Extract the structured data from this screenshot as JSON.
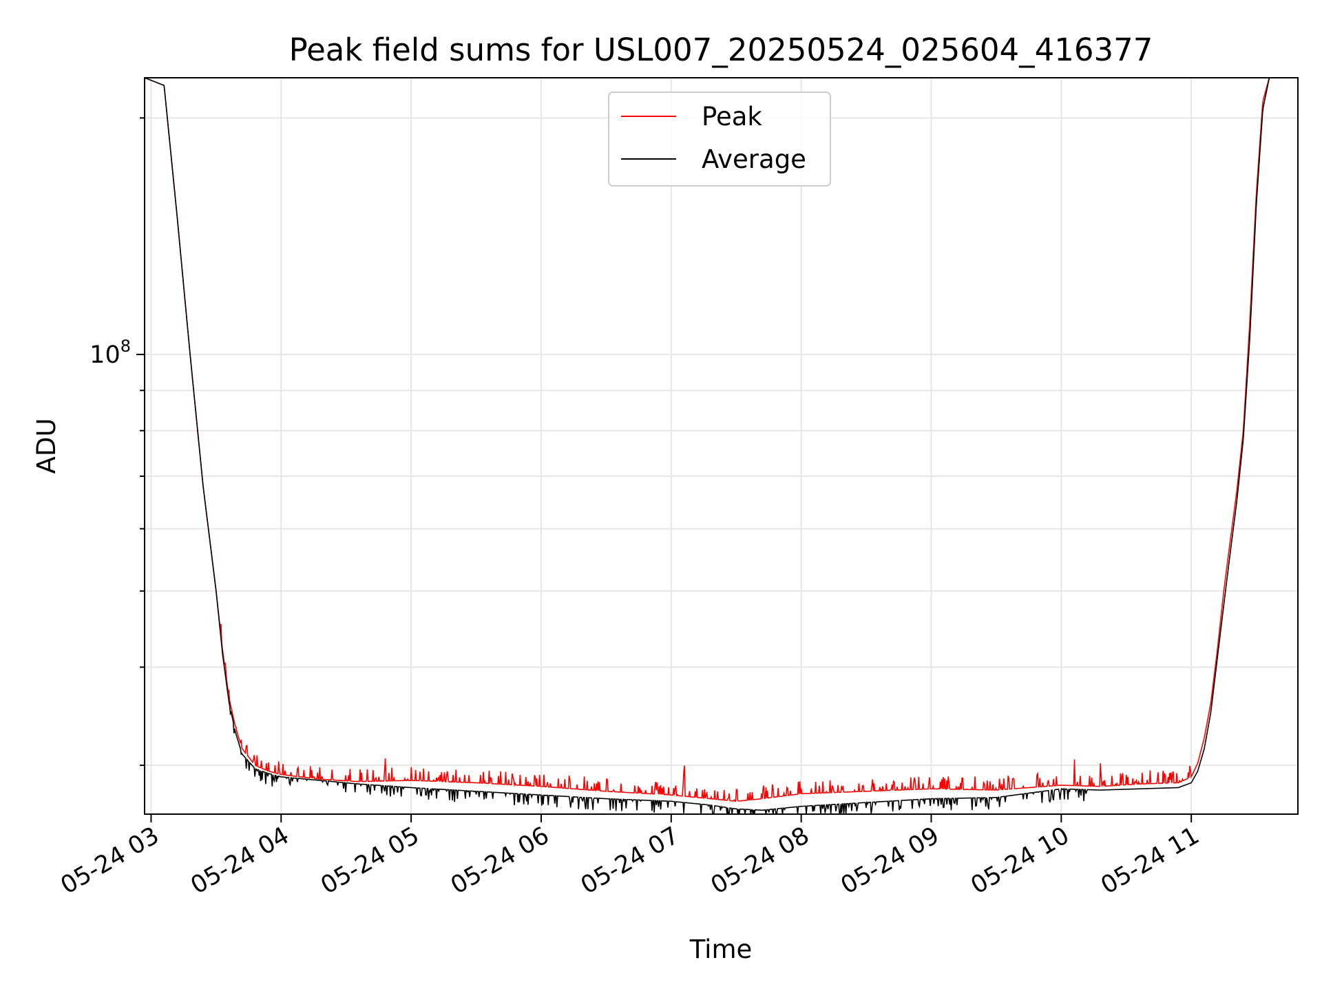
{
  "chart_data": {
    "type": "line",
    "title": "Peak field sums for USL007_20250524_025604_416377",
    "xlabel": "Time",
    "ylabel": "ADU",
    "yscale": "log",
    "grid": true,
    "legend_position": "upper center",
    "xlim_hours": [
      2.95,
      11.82
    ],
    "ylim": [
      26000000,
      225000000
    ],
    "x_ticks": [
      {
        "value": 3,
        "label": "05-24 03"
      },
      {
        "value": 4,
        "label": "05-24 04"
      },
      {
        "value": 5,
        "label": "05-24 05"
      },
      {
        "value": 6,
        "label": "05-24 06"
      },
      {
        "value": 7,
        "label": "05-24 07"
      },
      {
        "value": 8,
        "label": "05-24 08"
      },
      {
        "value": 9,
        "label": "05-24 09"
      },
      {
        "value": 10,
        "label": "05-24 10"
      },
      {
        "value": 11,
        "label": "05-24 11"
      }
    ],
    "y_major_ticks": [
      {
        "value": 100000000,
        "base": "10",
        "exponent": "8"
      }
    ],
    "y_minor_ticks": [
      30000000,
      40000000,
      50000000,
      60000000,
      70000000,
      80000000,
      90000000,
      200000000
    ],
    "series": [
      {
        "name": "Peak",
        "color": "#ff0000",
        "x": [
          2.95,
          3.1,
          3.2,
          3.3,
          3.4,
          3.5,
          3.55,
          3.6,
          3.65,
          3.7,
          3.8,
          3.9,
          4.0,
          4.3,
          4.6,
          5.0,
          5.5,
          6.0,
          6.5,
          7.0,
          7.3,
          7.5,
          7.7,
          8.0,
          8.5,
          9.0,
          9.5,
          10.0,
          10.3,
          10.6,
          10.9,
          11.0,
          11.05,
          11.1,
          11.15,
          11.2,
          11.25,
          11.3,
          11.35,
          11.4,
          11.45,
          11.5,
          11.55,
          11.6,
          11.65,
          11.82
        ],
        "y": [
          225000000,
          220000000,
          150000000,
          100000000,
          68000000,
          50000000,
          42000000,
          36500000,
          33500000,
          31500000,
          30000000,
          29500000,
          29200000,
          28800000,
          28600000,
          28700000,
          28500000,
          28200000,
          27800000,
          27500000,
          27200000,
          27000000,
          27200000,
          27600000,
          27800000,
          28000000,
          27900000,
          28300000,
          28200000,
          28400000,
          28500000,
          29000000,
          30200000,
          32500000,
          36000000,
          42000000,
          50000000,
          58000000,
          67000000,
          80000000,
          110000000,
          160000000,
          210000000,
          225000000,
          225000000,
          225000000
        ],
        "spikes": {
          "count": 380,
          "x_range": [
            3.5,
            11.0
          ],
          "upper_factor": 1.04,
          "notable": [
            {
              "x": 4.8,
              "factor": 1.035
            },
            {
              "x": 5.0,
              "factor": 1.04
            },
            {
              "x": 7.1,
              "factor": 1.06
            },
            {
              "x": 10.1,
              "factor": 1.08
            },
            {
              "x": 10.3,
              "factor": 1.07
            }
          ]
        }
      },
      {
        "name": "Average",
        "color": "#000000",
        "x": [
          2.95,
          3.1,
          3.2,
          3.3,
          3.4,
          3.5,
          3.55,
          3.6,
          3.65,
          3.7,
          3.8,
          3.9,
          4.0,
          4.3,
          4.6,
          5.0,
          5.5,
          6.0,
          6.5,
          7.0,
          7.3,
          7.5,
          7.7,
          8.0,
          8.5,
          9.0,
          9.5,
          10.0,
          10.3,
          10.6,
          10.9,
          11.0,
          11.05,
          11.1,
          11.15,
          11.2,
          11.25,
          11.3,
          11.35,
          11.4,
          11.45,
          11.5,
          11.55,
          11.6,
          11.65,
          11.82
        ],
        "y": [
          225000000,
          220000000,
          150000000,
          100000000,
          68000000,
          50000000,
          41500000,
          36000000,
          33000000,
          31000000,
          29700000,
          29300000,
          29000000,
          28700000,
          28400000,
          28100000,
          27800000,
          27500000,
          27200000,
          27000000,
          26700000,
          26400000,
          26300000,
          26600000,
          26900000,
          27200000,
          27300000,
          28000000,
          27900000,
          28000000,
          28100000,
          28500000,
          29500000,
          31500000,
          35000000,
          41000000,
          48000000,
          56000000,
          65000000,
          78000000,
          105000000,
          155000000,
          205000000,
          225000000,
          225000000,
          225000000
        ],
        "dips": {
          "count": 320,
          "x_range": [
            3.6,
            10.2
          ],
          "lower_factor": 0.965
        }
      }
    ]
  }
}
